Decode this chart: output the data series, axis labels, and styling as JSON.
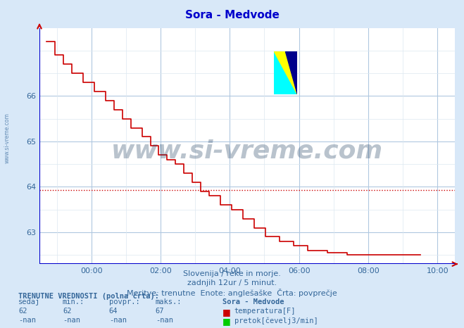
{
  "title": "Sora - Medvode",
  "title_color": "#0000cc",
  "bg_color": "#d8e8f8",
  "plot_bg_color": "#ffffff",
  "grid_color_major": "#b0c8e0",
  "grid_color_minor": "#dce8f0",
  "line_color": "#cc0000",
  "avg_line_color": "#cc0000",
  "avg_value": 63.93,
  "x_min": -1.5,
  "x_max": 10.5,
  "y_min": 62.3,
  "y_max": 67.5,
  "x_ticks": [
    0,
    2,
    4,
    6,
    8,
    10
  ],
  "x_tick_labels": [
    "00:00",
    "02:00",
    "04:00",
    "06:00",
    "08:00",
    "10:00"
  ],
  "y_ticks": [
    63,
    64,
    65,
    66
  ],
  "subtitle1": "Slovenija / reke in morje.",
  "subtitle2": "zadnjih 12ur / 5 minut.",
  "subtitle3": "Meritve: trenutne  Enote: anglešaške  Črta: povprečje",
  "footer_label1": "TRENUTNE VREDNOSTI (polna črta):",
  "footer_cols": [
    "sedaj",
    "min.:",
    "povpr.:",
    "maks.:"
  ],
  "footer_row1": [
    "62",
    "62",
    "64",
    "67"
  ],
  "footer_row2": [
    "-nan",
    "-nan",
    "-nan",
    "-nan"
  ],
  "footer_series1": "temperatura[F]",
  "footer_series2": "pretok[čevelj3/min]",
  "footer_series1_color": "#cc0000",
  "footer_series2_color": "#00cc00",
  "footer_station": "Sora - Medvode",
  "watermark_text": "www.si-vreme.com",
  "watermark_color": "#1a3a5c",
  "watermark_alpha": 0.3,
  "sidebar_text": "www.si-vreme.com",
  "sidebar_color": "#336699"
}
